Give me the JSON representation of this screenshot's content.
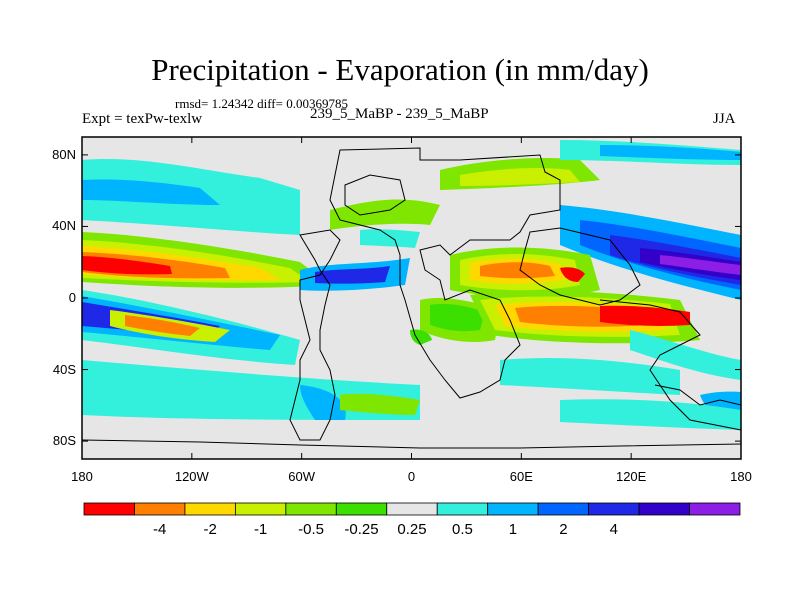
{
  "header": {
    "title": "Precipitation - Evaporation (in mm/day)",
    "stats": "rmsd= 1.24342 diff= 0.00369785",
    "expt": "Expt = texPw-texlw",
    "case_label": "239_5_MaBP - 239_5_MaBP",
    "season": "JJA"
  },
  "map": {
    "lat_ticks": [
      "80N",
      "40N",
      "0",
      "40S",
      "80S"
    ],
    "lon_ticks": [
      "180",
      "120W",
      "60W",
      "0",
      "60E",
      "120E",
      "180"
    ],
    "lat_values": [
      80,
      40,
      0,
      -40,
      -80
    ],
    "lon_values": [
      -180,
      -120,
      -60,
      0,
      60,
      120,
      180
    ],
    "lat_range": [
      -90,
      90
    ],
    "lon_range": [
      -180,
      180
    ]
  },
  "colorbar": {
    "labels": [
      "-4",
      "-2",
      "-1",
      "-0.5",
      "-0.25",
      "0.25",
      "0.5",
      "1",
      "2",
      "4"
    ],
    "colors": [
      "#ff0000",
      "#ff7f00",
      "#ffd800",
      "#c8f000",
      "#7ee600",
      "#3ce000",
      "#e6e6e6",
      "#33f0dc",
      "#00b4ff",
      "#0066ff",
      "#1e28e6",
      "#3200c8",
      "#8c1ee6"
    ]
  },
  "chart_data": {
    "type": "heatmap",
    "title": "Precipitation - Evaporation (in mm/day)",
    "levels": [
      -4,
      -2,
      -1,
      -0.5,
      -0.25,
      0.25,
      0.5,
      1,
      2,
      4
    ],
    "x_range": [
      -180,
      180
    ],
    "y_range": [
      -90,
      90
    ]
  }
}
